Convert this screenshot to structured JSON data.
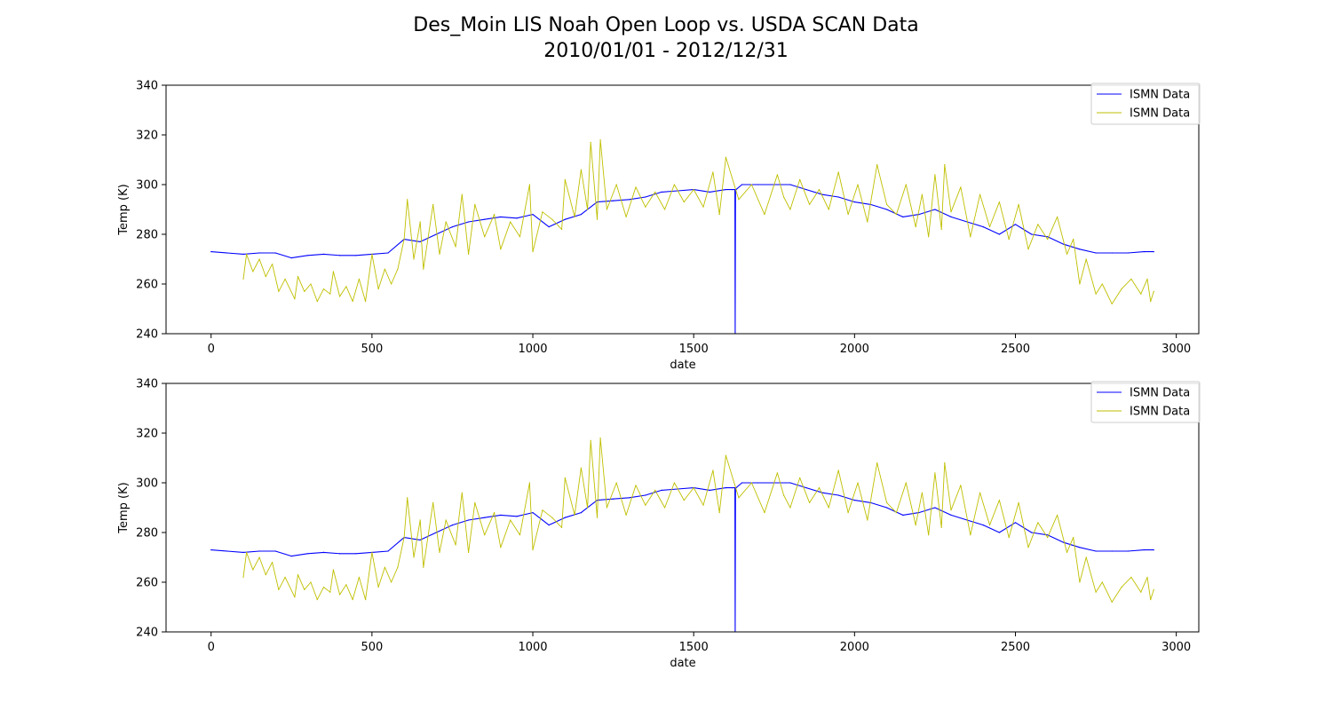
{
  "figure": {
    "title_line1": "Des_Moin LIS Noah Open Loop vs. USDA SCAN Data",
    "title_line2": "2010/01/01 - 2012/12/31"
  },
  "colors": {
    "series_blue": "#0000ff",
    "series_yellow": "#bfbf00",
    "axis": "#000000"
  },
  "chart_data": [
    {
      "type": "line",
      "xlabel": "date",
      "ylabel": "Temp (K)",
      "xlim": [
        -140,
        3070
      ],
      "ylim": [
        240,
        340
      ],
      "xticks": [
        0,
        500,
        1000,
        1500,
        2000,
        2500,
        3000
      ],
      "yticks": [
        240,
        260,
        280,
        300,
        320,
        340
      ],
      "legend": {
        "placement": "top-right",
        "entries": [
          "ISMN Data",
          "ISMN Data"
        ]
      },
      "grid": false,
      "series": [
        {
          "name": "ISMN Data",
          "color": "blue",
          "x": [
            0,
            50,
            100,
            150,
            200,
            250,
            300,
            350,
            400,
            450,
            500,
            550,
            600,
            650,
            700,
            750,
            800,
            850,
            900,
            950,
            1000,
            1050,
            1100,
            1150,
            1200,
            1250,
            1300,
            1350,
            1400,
            1450,
            1500,
            1550,
            1600,
            1620,
            1628,
            1629,
            1630,
            1632,
            1650,
            1700,
            1750,
            1800,
            1850,
            1900,
            1950,
            2000,
            2050,
            2100,
            2150,
            2200,
            2250,
            2300,
            2350,
            2400,
            2450,
            2500,
            2550,
            2600,
            2650,
            2700,
            2750,
            2800,
            2850,
            2900,
            2930
          ],
          "y": [
            273,
            272.5,
            272,
            272.5,
            272.5,
            270.5,
            271.5,
            272,
            271.5,
            271.5,
            272,
            272.5,
            278,
            277,
            280,
            283,
            285,
            286,
            287,
            286.5,
            288,
            283,
            286,
            288,
            293,
            293.5,
            294,
            295,
            297,
            297.5,
            298,
            297,
            298,
            298,
            298,
            240,
            298,
            298,
            300,
            300,
            300,
            300,
            298,
            296,
            295,
            293,
            292,
            290,
            287,
            288,
            290,
            287,
            285,
            283,
            280,
            284,
            280,
            279,
            276,
            274,
            272.5,
            272.5,
            272.5,
            273,
            273
          ]
        },
        {
          "name": "ISMN Data",
          "color": "yellow",
          "x": [
            100,
            110,
            130,
            150,
            170,
            190,
            210,
            230,
            260,
            270,
            290,
            310,
            330,
            350,
            370,
            380,
            400,
            420,
            440,
            460,
            480,
            500,
            520,
            540,
            560,
            580,
            600,
            610,
            630,
            650,
            660,
            690,
            710,
            730,
            760,
            780,
            800,
            820,
            850,
            880,
            900,
            930,
            960,
            990,
            1000,
            1030,
            1060,
            1090,
            1100,
            1130,
            1150,
            1170,
            1180,
            1200,
            1210,
            1230,
            1260,
            1290,
            1320,
            1350,
            1380,
            1410,
            1440,
            1470,
            1500,
            1530,
            1560,
            1580,
            1600,
            1640,
            1680,
            1720,
            1760,
            1780,
            1800,
            1830,
            1860,
            1890,
            1920,
            1950,
            1980,
            2010,
            2040,
            2070,
            2100,
            2130,
            2160,
            2190,
            2210,
            2230,
            2250,
            2270,
            2280,
            2300,
            2330,
            2360,
            2390,
            2420,
            2450,
            2480,
            2510,
            2540,
            2570,
            2600,
            2630,
            2660,
            2680,
            2700,
            2720,
            2750,
            2770,
            2800,
            2830,
            2860,
            2890,
            2910,
            2920,
            2930
          ],
          "y": [
            262,
            272,
            265,
            270,
            263,
            268,
            257,
            262,
            254,
            263,
            257,
            260,
            253,
            258,
            256,
            265,
            255,
            259,
            253,
            262,
            253,
            272,
            258,
            266,
            260,
            266,
            278,
            294,
            270,
            285,
            266,
            292,
            272,
            285,
            275,
            296,
            272,
            292,
            279,
            288,
            274,
            285,
            279,
            300,
            273,
            289,
            286,
            282,
            302,
            287,
            306,
            290,
            317,
            286,
            318,
            290,
            300,
            287,
            299,
            291,
            297,
            290,
            300,
            293,
            298,
            291,
            305,
            288,
            311,
            294,
            300,
            288,
            304,
            295,
            290,
            302,
            292,
            298,
            290,
            305,
            288,
            300,
            285,
            308,
            292,
            288,
            300,
            283,
            296,
            279,
            304,
            282,
            308,
            289,
            299,
            279,
            296,
            283,
            293,
            278,
            292,
            274,
            284,
            278,
            287,
            272,
            278,
            260,
            270,
            256,
            260,
            252,
            258,
            262,
            256,
            262,
            253,
            257
          ]
        }
      ]
    },
    {
      "type": "line",
      "xlabel": "date",
      "ylabel": "Temp (K)",
      "xlim": [
        -140,
        3070
      ],
      "ylim": [
        240,
        340
      ],
      "xticks": [
        0,
        500,
        1000,
        1500,
        2000,
        2500,
        3000
      ],
      "yticks": [
        240,
        260,
        280,
        300,
        320,
        340
      ],
      "legend": {
        "placement": "top-right",
        "entries": [
          "ISMN Data",
          "ISMN Data"
        ]
      },
      "grid": false,
      "series": [
        {
          "name": "ISMN Data",
          "color": "blue",
          "x": [
            0,
            50,
            100,
            150,
            200,
            250,
            300,
            350,
            400,
            450,
            500,
            550,
            600,
            650,
            700,
            750,
            800,
            850,
            900,
            950,
            1000,
            1050,
            1100,
            1150,
            1200,
            1250,
            1300,
            1350,
            1400,
            1450,
            1500,
            1550,
            1600,
            1620,
            1628,
            1629,
            1630,
            1632,
            1650,
            1700,
            1750,
            1800,
            1850,
            1900,
            1950,
            2000,
            2050,
            2100,
            2150,
            2200,
            2250,
            2300,
            2350,
            2400,
            2450,
            2500,
            2550,
            2600,
            2650,
            2700,
            2750,
            2800,
            2850,
            2900,
            2930
          ],
          "y": [
            273,
            272.5,
            272,
            272.5,
            272.5,
            270.5,
            271.5,
            272,
            271.5,
            271.5,
            272,
            272.5,
            278,
            277,
            280,
            283,
            285,
            286,
            287,
            286.5,
            288,
            283,
            286,
            288,
            293,
            293.5,
            294,
            295,
            297,
            297.5,
            298,
            297,
            298,
            298,
            298,
            240,
            298,
            298,
            300,
            300,
            300,
            300,
            298,
            296,
            295,
            293,
            292,
            290,
            287,
            288,
            290,
            287,
            285,
            283,
            280,
            284,
            280,
            279,
            276,
            274,
            272.5,
            272.5,
            272.5,
            273,
            273
          ]
        },
        {
          "name": "ISMN Data",
          "color": "yellow",
          "x": [
            100,
            110,
            130,
            150,
            170,
            190,
            210,
            230,
            260,
            270,
            290,
            310,
            330,
            350,
            370,
            380,
            400,
            420,
            440,
            460,
            480,
            500,
            520,
            540,
            560,
            580,
            600,
            610,
            630,
            650,
            660,
            690,
            710,
            730,
            760,
            780,
            800,
            820,
            850,
            880,
            900,
            930,
            960,
            990,
            1000,
            1030,
            1060,
            1090,
            1100,
            1130,
            1150,
            1170,
            1180,
            1200,
            1210,
            1230,
            1260,
            1290,
            1320,
            1350,
            1380,
            1410,
            1440,
            1470,
            1500,
            1530,
            1560,
            1580,
            1600,
            1640,
            1680,
            1720,
            1760,
            1780,
            1800,
            1830,
            1860,
            1890,
            1920,
            1950,
            1980,
            2010,
            2040,
            2070,
            2100,
            2130,
            2160,
            2190,
            2210,
            2230,
            2250,
            2270,
            2280,
            2300,
            2330,
            2360,
            2390,
            2420,
            2450,
            2480,
            2510,
            2540,
            2570,
            2600,
            2630,
            2660,
            2680,
            2700,
            2720,
            2750,
            2770,
            2800,
            2830,
            2860,
            2890,
            2910,
            2920,
            2930
          ],
          "y": [
            262,
            272,
            265,
            270,
            263,
            268,
            257,
            262,
            254,
            263,
            257,
            260,
            253,
            258,
            256,
            265,
            255,
            259,
            253,
            262,
            253,
            272,
            258,
            266,
            260,
            266,
            278,
            294,
            270,
            285,
            266,
            292,
            272,
            285,
            275,
            296,
            272,
            292,
            279,
            288,
            274,
            285,
            279,
            300,
            273,
            289,
            286,
            282,
            302,
            287,
            306,
            290,
            317,
            286,
            318,
            290,
            300,
            287,
            299,
            291,
            297,
            290,
            300,
            293,
            298,
            291,
            305,
            288,
            311,
            294,
            300,
            288,
            304,
            295,
            290,
            302,
            292,
            298,
            290,
            305,
            288,
            300,
            285,
            308,
            292,
            288,
            300,
            283,
            296,
            279,
            304,
            282,
            308,
            289,
            299,
            279,
            296,
            283,
            293,
            278,
            292,
            274,
            284,
            278,
            287,
            272,
            278,
            260,
            270,
            256,
            260,
            252,
            258,
            262,
            256,
            262,
            253,
            257
          ]
        }
      ]
    }
  ]
}
